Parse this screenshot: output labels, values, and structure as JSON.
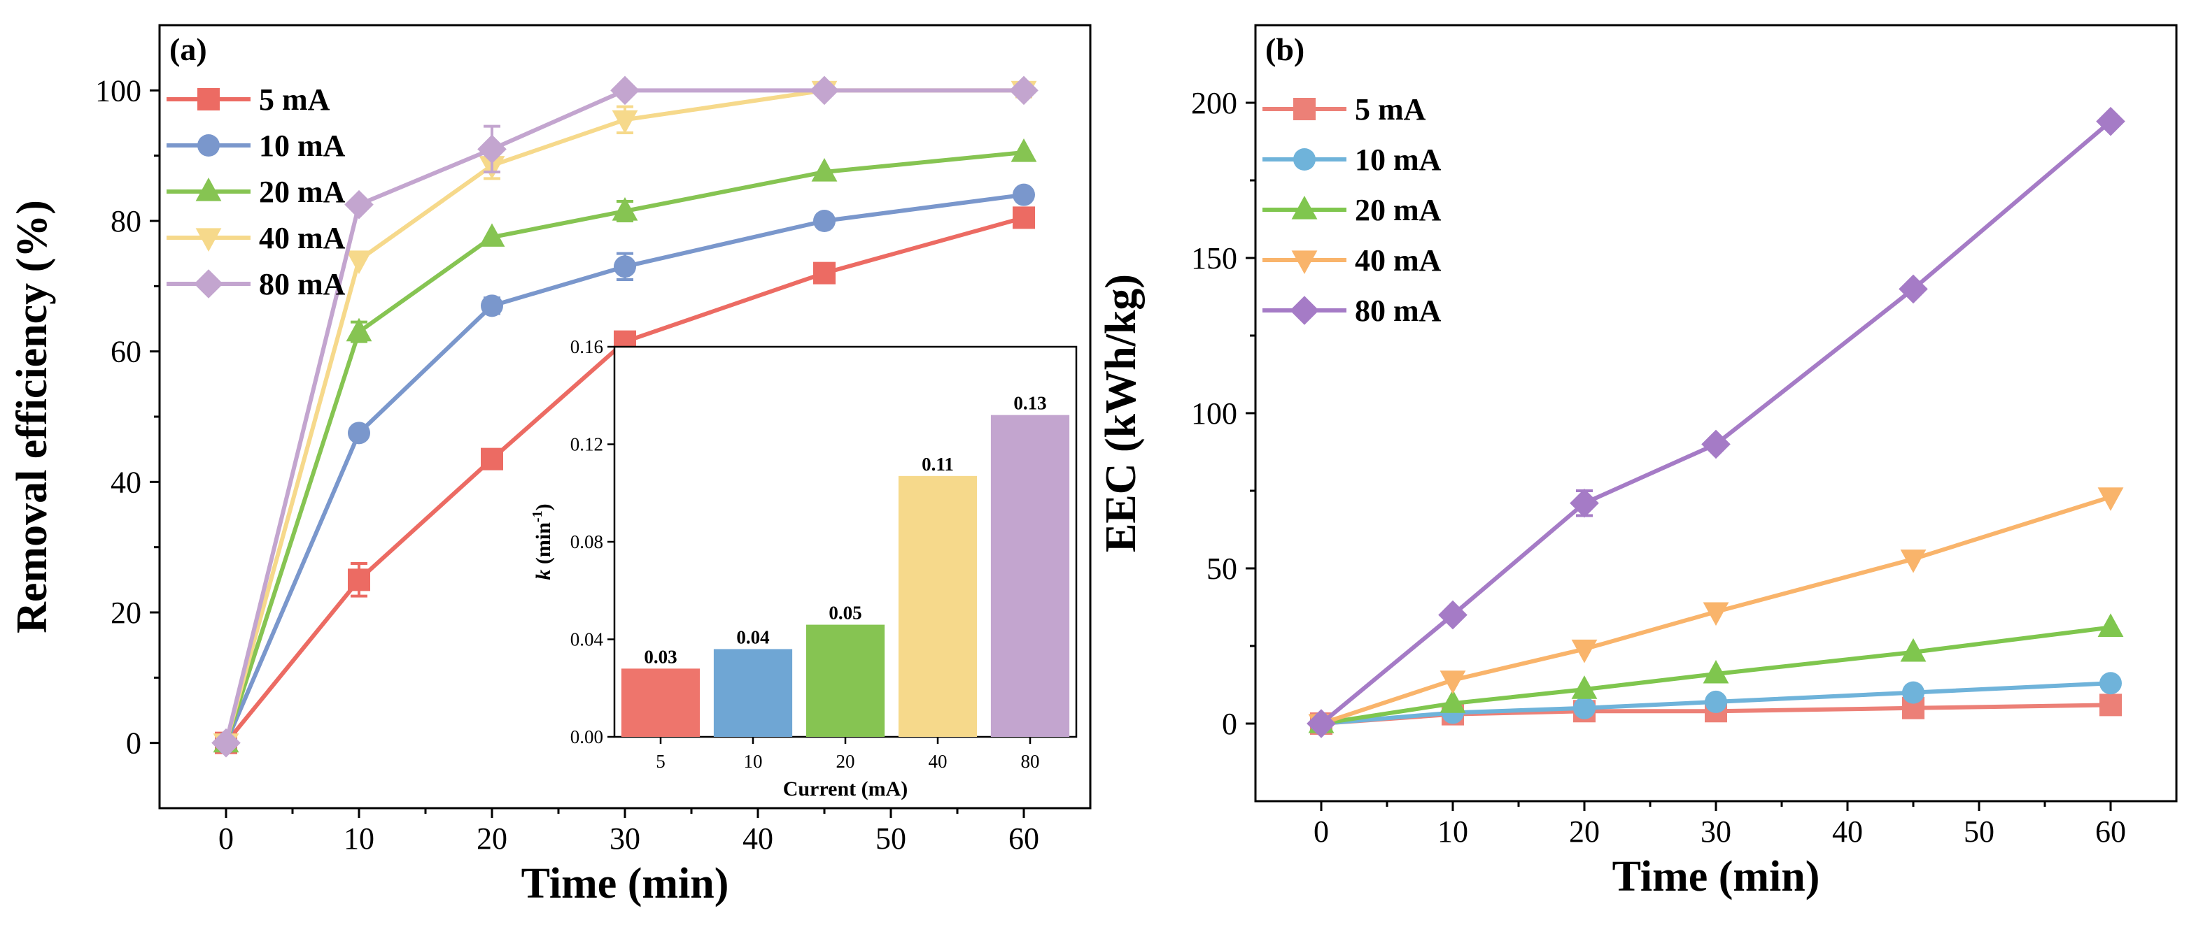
{
  "chart_data": [
    {
      "id": "a",
      "type": "line",
      "panel_label": "(a)",
      "xlabel": "Time (min)",
      "ylabel": "Removal efficiency (%)",
      "xlim": [
        -5,
        65
      ],
      "ylim": [
        -10,
        110
      ],
      "xticks": [
        0,
        10,
        20,
        30,
        40,
        50,
        60
      ],
      "yticks": [
        0,
        20,
        40,
        60,
        80,
        100
      ],
      "legend_position": "top-left",
      "series": [
        {
          "name": "5 mA",
          "color": "#ec6b63",
          "marker": "square",
          "x": [
            0,
            10,
            20,
            30,
            45,
            60
          ],
          "y": [
            0,
            25,
            43.5,
            61.5,
            72,
            80.5
          ],
          "err": [
            0,
            2.5,
            0,
            0,
            0,
            0
          ]
        },
        {
          "name": "10 mA",
          "color": "#7a97cc",
          "marker": "circle",
          "x": [
            0,
            10,
            20,
            30,
            45,
            60
          ],
          "y": [
            0,
            47.5,
            67,
            73,
            80,
            84
          ],
          "err": [
            0,
            0,
            1.2,
            2,
            0,
            0
          ]
        },
        {
          "name": "20 mA",
          "color": "#86c452",
          "marker": "triangle-up",
          "x": [
            0,
            10,
            20,
            30,
            45,
            60
          ],
          "y": [
            0,
            63,
            77.5,
            81.5,
            87.5,
            90.5
          ],
          "err": [
            0,
            1.5,
            0,
            1.5,
            0,
            0
          ]
        },
        {
          "name": "40 mA",
          "color": "#f6d98b",
          "marker": "triangle-down",
          "x": [
            0,
            10,
            20,
            30,
            45,
            60
          ],
          "y": [
            0,
            74,
            88.5,
            95.5,
            100,
            100
          ],
          "err": [
            0,
            0,
            2,
            2,
            0,
            1
          ]
        },
        {
          "name": "80 mA",
          "color": "#c3a5cf",
          "marker": "diamond",
          "x": [
            0,
            10,
            20,
            30,
            45,
            60
          ],
          "y": [
            0,
            82.5,
            91,
            100,
            100,
            100
          ],
          "err": [
            0,
            0,
            3.5,
            0,
            0,
            0
          ]
        }
      ]
    },
    {
      "id": "a-inset",
      "type": "bar",
      "xlabel": "Current (mA)",
      "ylabel_main": "k",
      "ylabel_unit": " (min",
      "ylabel_sup": "-1",
      "ylabel_close": ")",
      "categories": [
        "5",
        "10",
        "20",
        "40",
        "80"
      ],
      "values": [
        0.028,
        0.036,
        0.046,
        0.107,
        0.132
      ],
      "labels": [
        "0.03",
        "0.04",
        "0.05",
        "0.11",
        "0.13"
      ],
      "colors": [
        "#ee756c",
        "#6fa6d4",
        "#86c452",
        "#f6d98b",
        "#c3a5cf"
      ],
      "ylim": [
        0,
        0.16
      ],
      "yticks": [
        "0.00",
        "0.04",
        "0.08",
        "0.12",
        "0.16"
      ]
    },
    {
      "id": "b",
      "type": "line",
      "panel_label": "(b)",
      "xlabel": "Time (min)",
      "ylabel": "EEC (kWh/kg)",
      "xlim": [
        -5,
        65
      ],
      "ylim": [
        -25,
        225
      ],
      "xticks": [
        0,
        10,
        20,
        30,
        40,
        50,
        60
      ],
      "yticks": [
        0,
        50,
        100,
        150,
        200
      ],
      "legend_position": "top-left",
      "series": [
        {
          "name": "5 mA",
          "color": "#ec8077",
          "marker": "square",
          "x": [
            0,
            10,
            20,
            30,
            45,
            60
          ],
          "y": [
            0,
            3,
            4,
            4,
            5,
            6
          ],
          "err": [
            0,
            0,
            0,
            0,
            0,
            0
          ]
        },
        {
          "name": "10 mA",
          "color": "#6fb3da",
          "marker": "circle",
          "x": [
            0,
            10,
            20,
            30,
            45,
            60
          ],
          "y": [
            0,
            3.5,
            5,
            7,
            10,
            13
          ],
          "err": [
            0,
            0,
            0,
            0,
            0,
            0
          ]
        },
        {
          "name": "20 mA",
          "color": "#7fc64e",
          "marker": "triangle-up",
          "x": [
            0,
            10,
            20,
            30,
            45,
            60
          ],
          "y": [
            0,
            6.5,
            11,
            16,
            23,
            31
          ],
          "err": [
            0,
            0,
            0,
            0,
            0,
            0
          ]
        },
        {
          "name": "40 mA",
          "color": "#f9b46b",
          "marker": "triangle-down",
          "x": [
            0,
            10,
            20,
            30,
            45,
            60
          ],
          "y": [
            0,
            14,
            24,
            36,
            53,
            73
          ],
          "err": [
            0,
            0,
            0,
            0,
            0,
            0
          ]
        },
        {
          "name": "80 mA",
          "color": "#a57bc6",
          "marker": "diamond",
          "x": [
            0,
            10,
            20,
            30,
            45,
            60
          ],
          "y": [
            0,
            35,
            71,
            90,
            140,
            194
          ],
          "err": [
            0,
            0,
            4,
            0,
            0,
            0
          ]
        }
      ]
    }
  ]
}
